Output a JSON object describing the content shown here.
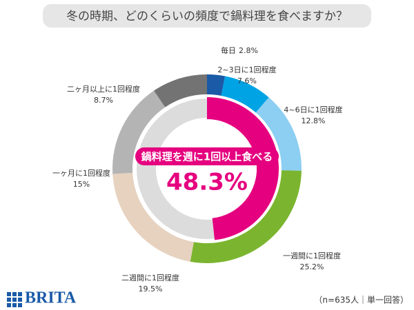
{
  "chart_data": {
    "type": "donut",
    "title": "冬の時期、どのくらいの頻度で鍋料理を食べますか？",
    "categories": [
      "毎日",
      "2~3日に1回程度",
      "4~6日に1回程度",
      "一週間に1回程度",
      "二週間に1回程度",
      "一ヶ月に1回程度",
      "二ヶ月以上に1回程度"
    ],
    "values": [
      2.8,
      7.6,
      12.8,
      25.2,
      19.5,
      15,
      8.7
    ],
    "value_labels": [
      "2.8%",
      "7.6%",
      "12.8%",
      "25.2%",
      "19.5%",
      "15%",
      "8.7%"
    ],
    "colors": [
      "#1b5aa6",
      "#00a3e4",
      "#8ccff2",
      "#7bb52f",
      "#e6d2bf",
      "#b4b4b4",
      "#737373"
    ],
    "highlight": {
      "label": "鍋料理を週に1回以上食べる",
      "value": 48.3,
      "value_label": "48.3%",
      "color": "#e5007f"
    },
    "note": "（n=635人｜単一回答）",
    "brand": "BRITA"
  }
}
